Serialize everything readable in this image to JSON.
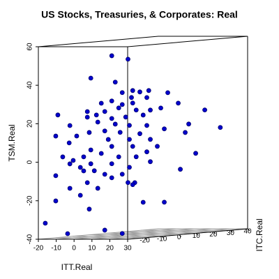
{
  "chart_data": {
    "type": "scatter3d",
    "title": "US Stocks, Treasuries, & Corporates: Real",
    "xlabel": "ITT.Real",
    "ylabel": "ITC.Real",
    "zlabel": "TSM.Real",
    "xlim": [
      -20,
      30
    ],
    "ylim": [
      -30,
      40
    ],
    "zlim": [
      -40,
      60
    ],
    "xticks": [
      -20,
      -10,
      0,
      10,
      20,
      30
    ],
    "yticks": [
      -20,
      -10,
      0,
      10,
      20,
      30,
      40
    ],
    "zticks": [
      -40,
      -20,
      0,
      20,
      40,
      60
    ],
    "color": "#0000cd",
    "grid": true,
    "x": [
      -2.6,
      1.4,
      -7.8,
      -1.7,
      2.6,
      6.6,
      4.4,
      0.0,
      11.3,
      2.3,
      6.1,
      -2.6,
      0.0,
      -5.2,
      2.6,
      13.9,
      9.6,
      -0.9,
      -8.7,
      -4.3,
      3.5,
      7.0,
      20.5,
      -16.0,
      -6.4,
      -2.6,
      0.9,
      5.2,
      -13.0,
      -8.7,
      -6.1,
      -1.7,
      1.8,
      6.1,
      16.5,
      24.4,
      10.5,
      -4.3,
      -8.2,
      -0.5,
      4.4,
      -16.5,
      -11.3,
      -3.5,
      1.8,
      7.0,
      15.7,
      -13.2,
      -7.8,
      -2.6,
      2.6,
      6.1,
      8.7,
      -14.8,
      -9.6,
      -5.2,
      -0.9,
      3.5,
      18.3,
      -13.0,
      -7.8,
      -2.6,
      1.8,
      7.0,
      14.5,
      -10.4,
      -6.9,
      -4.3,
      0.0,
      3.1,
      -8.7,
      -2.6,
      -16.5,
      -13.0,
      -6.1,
      1.4,
      -10.4,
      -16.5,
      -8.2,
      5.2,
      10.5,
      -19.1,
      -13.6,
      -4.3,
      0.0,
      2.6,
      -9.6,
      -12.2
    ],
    "y": [
      -5.3,
      0.0,
      -12.1,
      -4.2,
      1.5,
      6.7,
      3.8,
      -1.9,
      12.9,
      1.1,
      6.1,
      -5.3,
      -1.9,
      -8.7,
      1.5,
      16.3,
      10.6,
      -3.0,
      -13.2,
      -7.6,
      2.6,
      7.2,
      24.9,
      -22.8,
      -10.3,
      -5.3,
      -0.8,
      4.9,
      -18.9,
      -13.2,
      -9.8,
      -4.2,
      0.4,
      6.1,
      19.7,
      29.9,
      11.7,
      -7.6,
      -12.6,
      -2.6,
      3.8,
      -23.5,
      -16.7,
      -6.4,
      0.4,
      7.2,
      18.5,
      -19.1,
      -12.1,
      -5.3,
      1.5,
      6.1,
      9.5,
      -21.2,
      -14.4,
      -8.7,
      -3.0,
      2.6,
      21.9,
      -18.9,
      -12.1,
      -5.3,
      0.4,
      7.2,
      16.9,
      -15.5,
      -11.0,
      -7.6,
      -1.9,
      2.2,
      -13.2,
      -5.3,
      -23.5,
      -18.9,
      -9.8,
      0.0,
      -15.5,
      -23.5,
      -12.6,
      4.9,
      11.7,
      -26.9,
      -19.6,
      -7.6,
      -1.9,
      1.5,
      -14.4,
      -17.8
    ],
    "z": [
      53.4,
      51.2,
      42.3,
      39.6,
      34.8,
      34.4,
      33.9,
      34.0,
      32.8,
      31.2,
      30.8,
      29.9,
      27.8,
      29.0,
      28.3,
      27.1,
      25.0,
      26.1,
      25.0,
      24.6,
      24.6,
      24.2,
      22.9,
      24.0,
      23.0,
      20.8,
      21.2,
      21.8,
      18.2,
      22.1,
      19.3,
      17.8,
      16.8,
      16.3,
      16.0,
      13.4,
      14.1,
      14.5,
      14.1,
      13.4,
      12.2,
      13.1,
      12.6,
      10.0,
      9.5,
      9.0,
      11.7,
      9.2,
      5.0,
      6.3,
      5.8,
      2.6,
      5.2,
      2.1,
      1.6,
      2.9,
      0.7,
      0.3,
      0.6,
      -1.7,
      -2.2,
      -2.7,
      -5.0,
      -2.6,
      -7.3,
      -3.8,
      -5.9,
      -8.0,
      -8.4,
      -13.1,
      -11.9,
      -10.0,
      -7.5,
      -14.4,
      -15.1,
      -12.9,
      -18.3,
      -20.6,
      -25.7,
      -23.5,
      -24.0,
      -31.9,
      -37.9,
      -37.0,
      -39.2,
      -14.1,
      -5.7,
      0.0
    ]
  }
}
